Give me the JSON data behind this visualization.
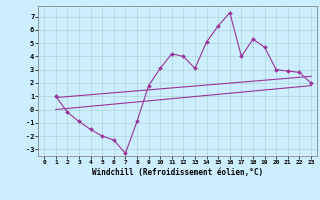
{
  "background_color": "#cceeff",
  "grid_color": "#aacccc",
  "line_color": "#993399",
  "marker_color": "#993399",
  "xlabel": "Windchill (Refroidissement éolien,°C)",
  "xlabel_fontsize": 5.5,
  "xlim": [
    -0.5,
    23.5
  ],
  "ylim": [
    -3.5,
    7.8
  ],
  "yticks": [
    -3,
    -2,
    -1,
    0,
    1,
    2,
    3,
    4,
    5,
    6,
    7
  ],
  "xticks": [
    0,
    1,
    2,
    3,
    4,
    5,
    6,
    7,
    8,
    9,
    10,
    11,
    12,
    13,
    14,
    15,
    16,
    17,
    18,
    19,
    20,
    21,
    22,
    23
  ],
  "series_main": {
    "x": [
      1,
      2,
      3,
      4,
      5,
      6,
      7,
      8,
      9,
      10,
      11,
      12,
      13,
      14,
      15,
      16,
      17,
      18,
      19,
      20,
      21,
      22,
      23
    ],
    "y": [
      1.0,
      -0.2,
      -0.9,
      -1.5,
      -2.0,
      -2.3,
      -3.3,
      -0.9,
      1.8,
      3.1,
      4.2,
      4.0,
      3.1,
      5.1,
      6.3,
      7.3,
      4.0,
      5.3,
      4.7,
      3.0,
      2.9,
      2.8,
      2.0
    ]
  },
  "series_line1": {
    "x": [
      1,
      23
    ],
    "y": [
      0.9,
      2.5
    ]
  },
  "series_line2": {
    "x": [
      1,
      23
    ],
    "y": [
      0.0,
      1.8
    ]
  }
}
